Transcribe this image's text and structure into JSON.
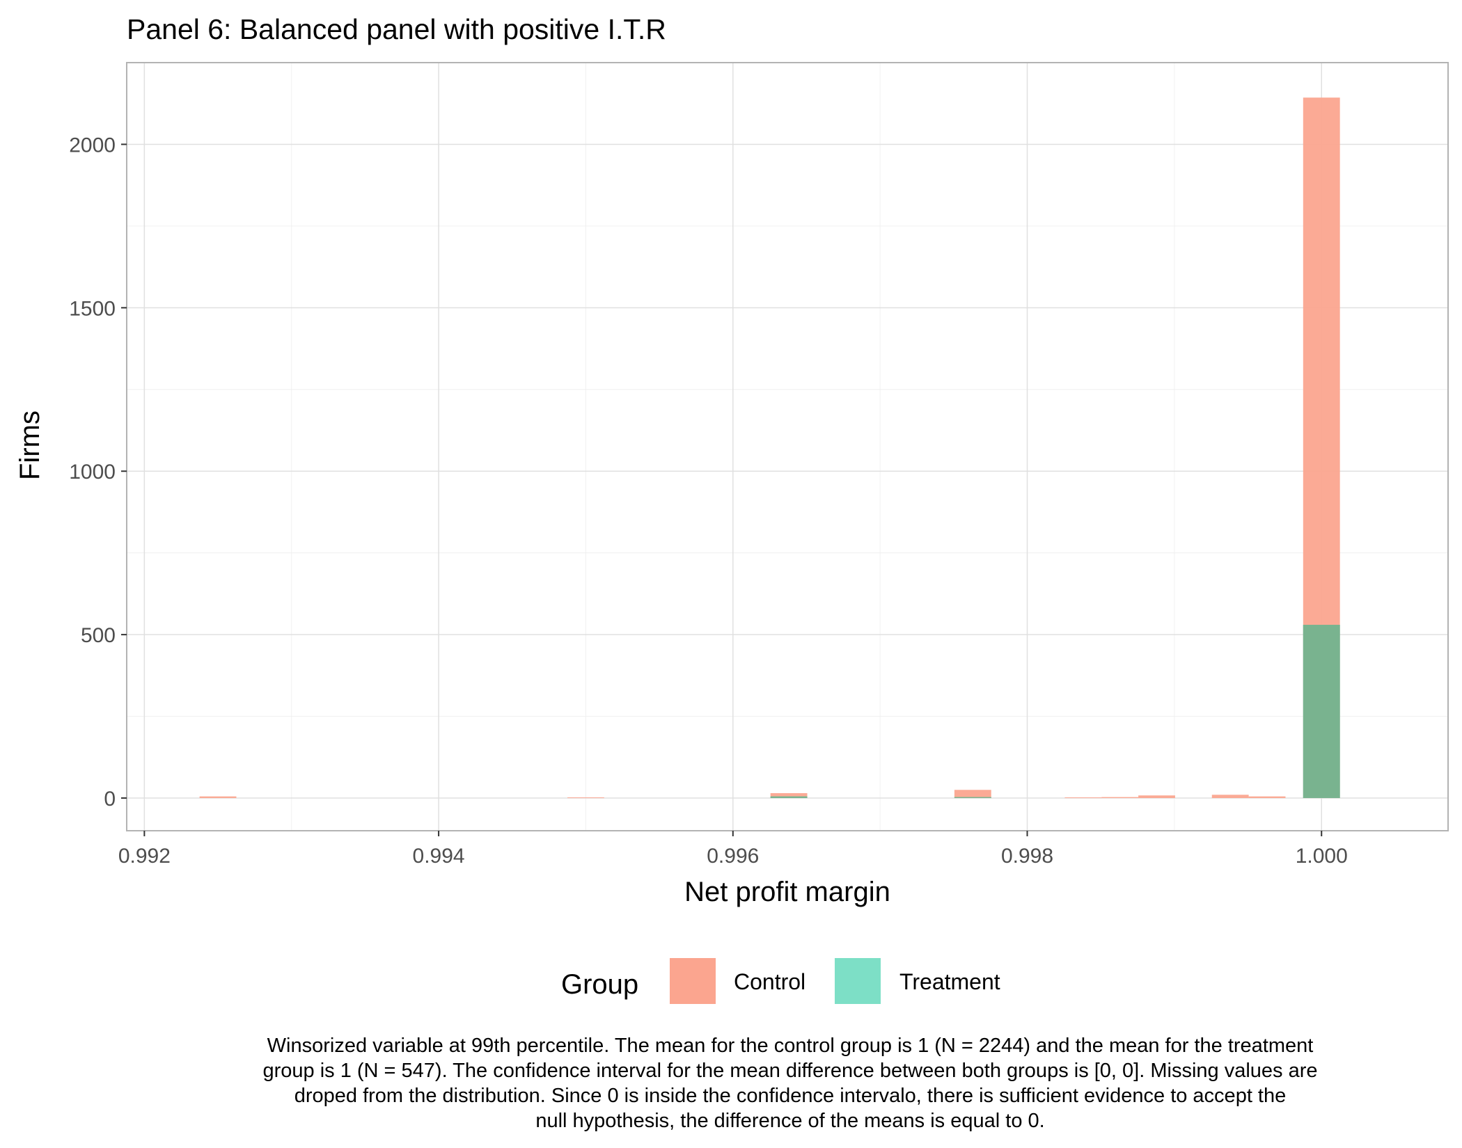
{
  "chart_data": {
    "type": "bar",
    "title": "Panel 6: Balanced panel with positive I.T.R",
    "xlabel": "Net profit margin",
    "ylabel": "Firms",
    "xlim": [
      0.99188,
      1.00086
    ],
    "ylim": [
      -100,
      2250
    ],
    "xticks": [
      0.992,
      0.994,
      0.996,
      0.998,
      1.0
    ],
    "xtick_labels": [
      "0.992",
      "0.994",
      "0.996",
      "0.998",
      "1.000"
    ],
    "yticks": [
      0,
      500,
      1000,
      1500,
      2000
    ],
    "ytick_labels": [
      "0",
      "500",
      "1000",
      "1500",
      "2000"
    ],
    "grid": true,
    "bin_width": 0.00025,
    "legend": {
      "title": "Group",
      "position": "bottom",
      "items": [
        {
          "label": "Control",
          "color": "#fba58f"
        },
        {
          "label": "Treatment",
          "color": "#7ddfc6"
        }
      ]
    },
    "series": [
      {
        "name": "Control",
        "color": "#fba58f",
        "bins": [
          {
            "x": 0.9925,
            "y": 5
          },
          {
            "x": 0.995,
            "y": 2
          },
          {
            "x": 0.99638,
            "y": 15
          },
          {
            "x": 0.99763,
            "y": 25
          },
          {
            "x": 0.99838,
            "y": 2
          },
          {
            "x": 0.99863,
            "y": 3
          },
          {
            "x": 0.99888,
            "y": 8
          },
          {
            "x": 0.99938,
            "y": 10
          },
          {
            "x": 0.99963,
            "y": 5
          },
          {
            "x": 1.0,
            "y": 2143
          }
        ]
      },
      {
        "name": "Treatment",
        "color": "#7ddfc6",
        "bins": [
          {
            "x": 0.99638,
            "y": 5
          },
          {
            "x": 0.99763,
            "y": 3
          },
          {
            "x": 1.0,
            "y": 530
          }
        ]
      }
    ]
  },
  "caption": {
    "lines": [
      "Winsorized variable at 99th percentile. The mean for the control group is 1 (N = 2244) and the mean for the treatment",
      "group is 1 (N = 547). The confidence interval for the mean difference between both groups is [0, 0]. Missing values are",
      "droped from the distribution. Since 0 is inside the confidence intervalo, there is sufficient evidence to accept the",
      "null hypothesis, the difference of the means is equal to 0."
    ]
  }
}
